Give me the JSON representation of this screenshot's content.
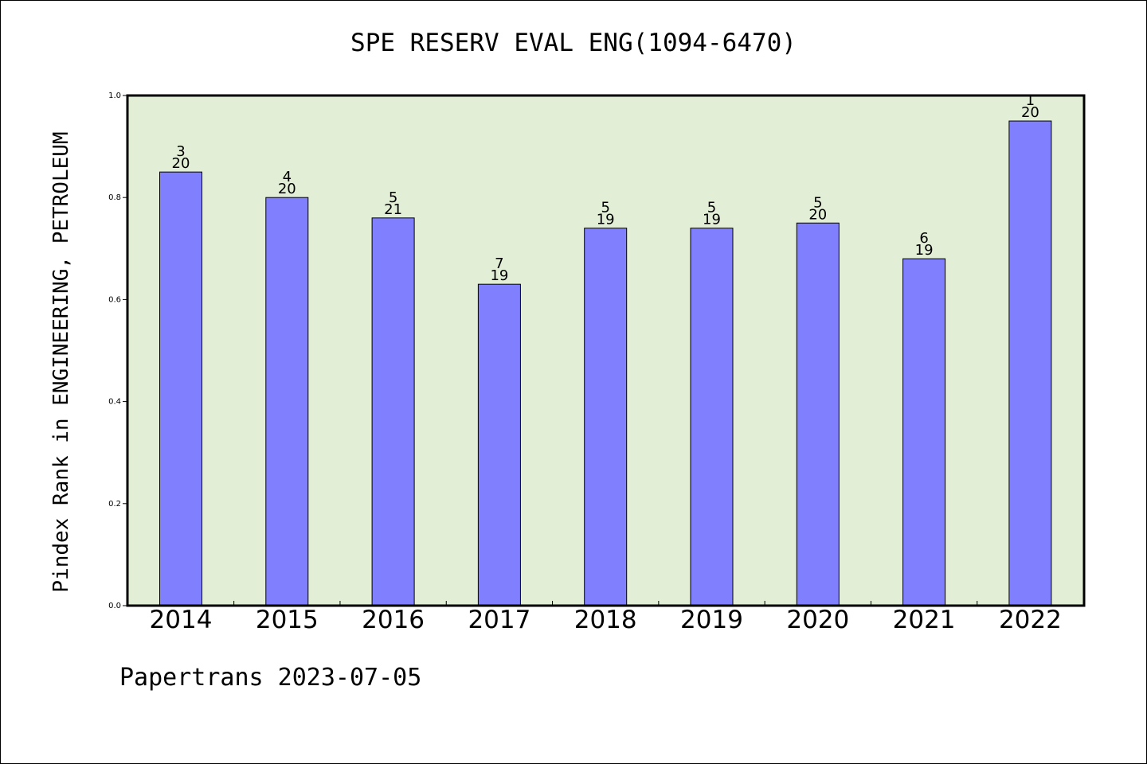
{
  "chart": {
    "title": "SPE RESERV EVAL ENG(1094-6470)",
    "ylabel": "Pindex Rank in ENGINEERING, PETROLEUM",
    "footer": "Papertrans 2023-07-05"
  },
  "colors": {
    "plot_background": "#e2efd6",
    "bar_fill": "#8080ff",
    "bar_stroke": "#000000",
    "axis": "#000000"
  },
  "chart_data": {
    "type": "bar",
    "title": "SPE RESERV EVAL ENG(1094-6470)",
    "xlabel": "",
    "ylabel": "Pindex Rank in ENGINEERING, PETROLEUM",
    "ylim": [
      0,
      1.0
    ],
    "yticks": [
      "0.0",
      "0.2",
      "0.4",
      "0.6",
      "0.8",
      "1.0"
    ],
    "grid": false,
    "categories": [
      "2014",
      "2015",
      "2016",
      "2017",
      "2018",
      "2019",
      "2020",
      "2021",
      "2022"
    ],
    "values": [
      0.85,
      0.8,
      0.76,
      0.63,
      0.74,
      0.74,
      0.75,
      0.68,
      0.95
    ],
    "rank": [
      "3",
      "4",
      "5",
      "7",
      "5",
      "5",
      "5",
      "6",
      "1"
    ],
    "total": [
      "20",
      "20",
      "21",
      "19",
      "19",
      "19",
      "20",
      "19",
      "20"
    ]
  }
}
